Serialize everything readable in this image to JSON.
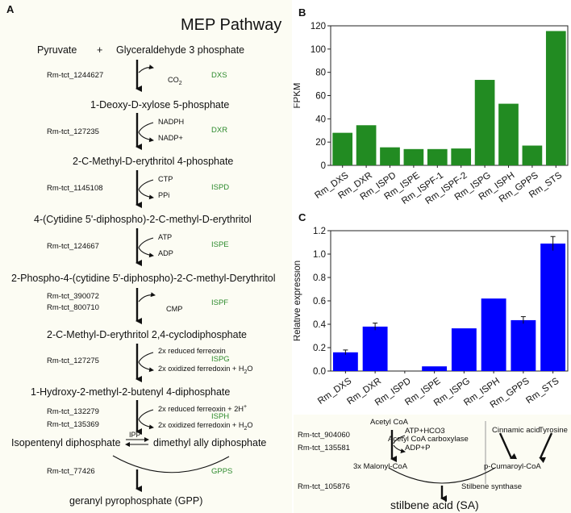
{
  "panel_a": {
    "letter": "A",
    "title": "MEP Pathway",
    "start_left": "Pyruvate",
    "plus": "+",
    "start_right": "Glyceraldehyde 3 phosphate",
    "steps": [
      {
        "gene": "Rm-tct_1244627",
        "enzyme": "DXS",
        "cofactor_top": "",
        "cofactor_bottom": "CO",
        "cofactor_bottom_sub": "2",
        "product": "1-Deoxy-D-xylose 5-phosphate"
      },
      {
        "gene": "Rm-tct_127235",
        "enzyme": "DXR",
        "cofactor_top": "NADPH",
        "cofactor_bottom": "NADP+",
        "product": "2-C-Methyl-D-erythritol 4-phosphate"
      },
      {
        "gene": "Rm-tct_1145108",
        "enzyme": "ISPD",
        "cofactor_top": "CTP",
        "cofactor_bottom": "PPi",
        "product": "4-(Cytidine 5'-diphospho)-2-C-methyl-D-erythritol"
      },
      {
        "gene": "Rm-tct_124667",
        "enzyme": "ISPE",
        "cofactor_top": "ATP",
        "cofactor_bottom": "ADP",
        "product": "2-Phospho-4-(cytidine 5'-diphospho)-2-C-methyl-Derythritol"
      },
      {
        "gene": "Rm-tct_390072",
        "gene2": "Rm-tct_800710",
        "enzyme": "ISPF",
        "cofactor_top": "",
        "cofactor_bottom": "CMP",
        "product": "2-C-Methyl-D-erythritol 2,4-cyclodiphosphate"
      },
      {
        "gene": "Rm-tct_127275",
        "enzyme": "ISPG",
        "cofactor_top": "2x reduced ferreoxin",
        "cofactor_bottom": "2x oxidized ferredoxin + H",
        "cofactor_bottom_sub": "2",
        "cofactor_bottom_tail": "O",
        "product": "1-Hydroxy-2-methyl-2-butenyl 4-diphosphate"
      },
      {
        "gene": "Rm-tct_132279",
        "gene2": "Rm-tct_135369",
        "enzyme": "ISPH",
        "cofactor_top": "2x reduced ferreoxin + 2H",
        "cofactor_top_sup": "+",
        "cofactor_bottom": "2x oxidized ferredoxin + H",
        "cofactor_bottom_sub": "2",
        "cofactor_bottom_tail": "O"
      }
    ],
    "ipp_label": "IPP",
    "isopentenyl": "Isopentenyl diphosphate",
    "dimethyl": "dimethyl ally diphosphate",
    "gpps_gene": "Rm-tct_77426",
    "gpps_enzyme": "GPPS",
    "final_product": "geranyl pyrophosphate (GPP)"
  },
  "panel_b": {
    "letter": "B",
    "chart_data": {
      "type": "bar",
      "categories": [
        "Rm_DXS",
        "Rm_DXR",
        "Rm_ISPD",
        "Rm_ISPE",
        "Rm_ISPF-1",
        "Rm_ISPF-2",
        "Rm_ISPG",
        "Rm_ISPH",
        "Rm_GPPS",
        "Rm_STS"
      ],
      "values": [
        28,
        34.5,
        15.5,
        14,
        14,
        14.5,
        73.5,
        53,
        17,
        115.5
      ],
      "ylabel": "FPKM",
      "ylim": [
        0,
        120
      ],
      "yticks": [
        0,
        20,
        40,
        60,
        80,
        100,
        120
      ],
      "color": "#228b22"
    }
  },
  "panel_c": {
    "letter": "C",
    "chart_data": {
      "type": "bar",
      "categories": [
        "Rm_DXS",
        "Rm_DXR",
        "Rm_ISPD",
        "Rm_ISPE",
        "Rm_ISPG",
        "Rm_ISPH",
        "Rm_GPPS",
        "Rm_STS"
      ],
      "values": [
        0.16,
        0.38,
        0.0,
        0.04,
        0.365,
        0.62,
        0.435,
        1.09
      ],
      "errors": [
        0.02,
        0.03,
        0,
        0,
        0,
        0,
        0.03,
        0.06
      ],
      "ylabel": "Relative expression",
      "ylim": [
        0,
        1.2
      ],
      "yticks": [
        "0.0",
        "0.2",
        "0.4",
        "0.6",
        "0.8",
        "1.0",
        "1.2"
      ],
      "color": "#0000ff"
    }
  },
  "panel_d": {
    "acetyl_coa": "Acetyl CoA",
    "gene1": "Rm-tct_904060",
    "gene2": "Rm-tct_135581",
    "cof_top": "ATP+HCO3",
    "enzyme": "Acetyl CoA carboxylase",
    "cof_bottom": "ADP+P",
    "malonyl": "3x Malonyl-CoA",
    "cinnamic": "Cinnamic acid",
    "tyrosine": "Tyrosine",
    "coumaroyl": "p-Cumaroyl-CoA",
    "gene3": "Rm-tct_105876",
    "sts": "Stilbene synthase",
    "product": "stilbene acid (SA)"
  }
}
